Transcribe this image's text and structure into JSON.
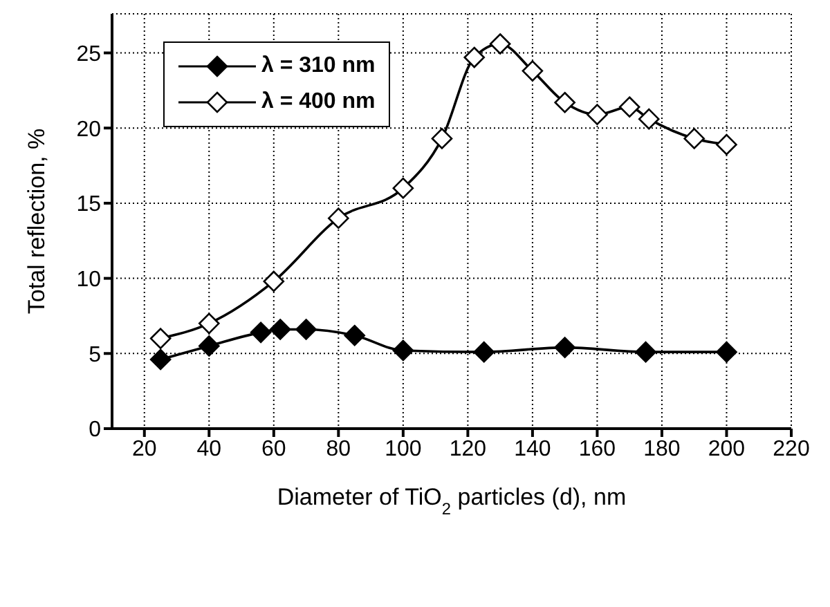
{
  "chart_data": {
    "type": "line",
    "xlabel": "Diameter of TiO$_{2}$ particles (d), nm",
    "ylabel": "Total reflection, %",
    "xlim": [
      10,
      220
    ],
    "xticks": [
      20,
      40,
      60,
      80,
      100,
      120,
      140,
      160,
      180,
      200,
      220
    ],
    "ylim": [
      0,
      27.6
    ],
    "yticks": [
      0,
      5,
      10,
      15,
      20,
      25
    ],
    "grid": true,
    "legend": "top left",
    "marker": "diamond",
    "line_style": "solid",
    "series": [
      {
        "name": "λ = 310 nm",
        "color": "#000000",
        "x": [
          25,
          40,
          56,
          62,
          70,
          85,
          100,
          125,
          150,
          175,
          200
        ],
        "values": [
          4.6,
          5.5,
          6.4,
          6.6,
          6.6,
          6.2,
          5.2,
          5.1,
          5.4,
          5.1,
          5.1
        ]
      },
      {
        "name": "λ = 400 nm",
        "color": "#000000",
        "x": [
          25,
          40,
          60,
          80,
          100,
          112,
          122,
          130,
          140,
          150,
          160,
          170,
          176,
          190,
          200
        ],
        "values": [
          6.0,
          7.0,
          9.8,
          14.0,
          16.0,
          19.3,
          24.7,
          25.6,
          23.8,
          21.7,
          20.9,
          21.4,
          20.6,
          19.3,
          18.9
        ]
      }
    ]
  }
}
